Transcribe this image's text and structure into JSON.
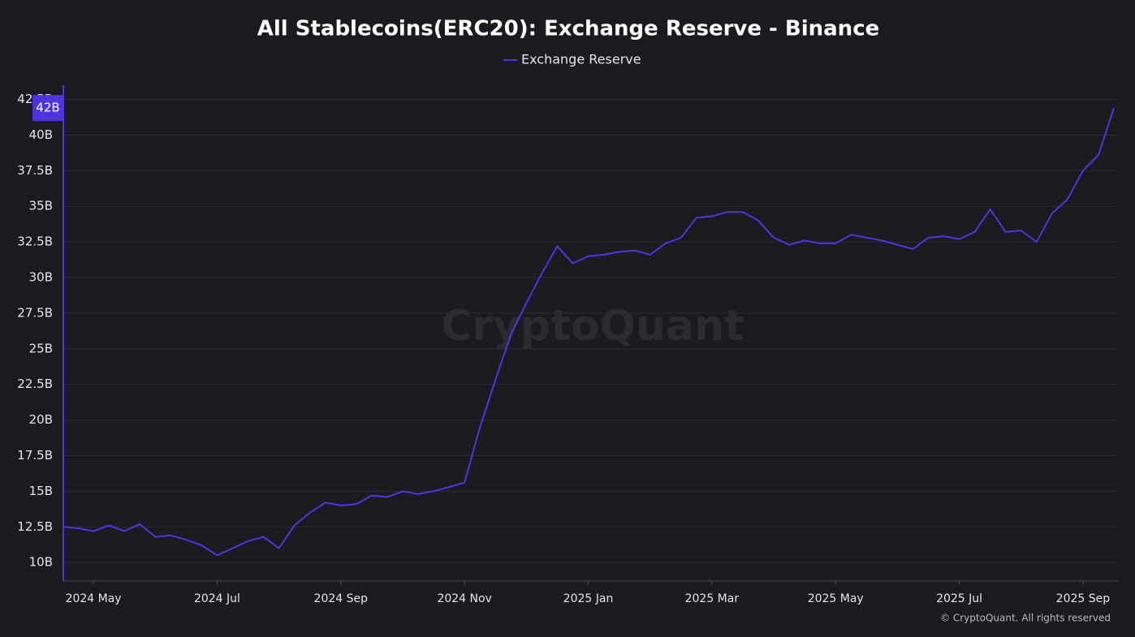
{
  "chart_data": {
    "type": "line",
    "title": "All Stablecoins(ERC20): Exchange Reserve - Binance",
    "watermark": "CryptoQuant",
    "copyright": "© CryptoQuant. All rights reserved",
    "categories": [
      null,
      null,
      "2024 May",
      null,
      null,
      null,
      null,
      null,
      null,
      null,
      "2024 Jul",
      null,
      null,
      null,
      null,
      null,
      null,
      null,
      "2024 Sep",
      null,
      null,
      null,
      null,
      null,
      null,
      null,
      "2024 Nov",
      null,
      null,
      null,
      null,
      null,
      null,
      null,
      "2025 Jan",
      null,
      null,
      null,
      null,
      null,
      null,
      null,
      "2025 Mar",
      null,
      null,
      null,
      null,
      null,
      null,
      null,
      "2025 May",
      null,
      null,
      null,
      null,
      null,
      null,
      null,
      "2025 Jul",
      null,
      null,
      null,
      null,
      null,
      null,
      null,
      "2025 Sep",
      null,
      null
    ],
    "series": [
      {
        "name": "Exchange Reserve",
        "color": "#4f33e0",
        "values": [
          12.5,
          12.4,
          12.2,
          12.6,
          12.2,
          12.7,
          11.8,
          11.9,
          11.6,
          11.2,
          10.5,
          11.0,
          11.5,
          11.8,
          11.0,
          12.6,
          13.5,
          14.2,
          14.0,
          14.1,
          14.7,
          14.6,
          15.0,
          14.8,
          15.0,
          15.3,
          15.6,
          19.5,
          22.8,
          26.0,
          28.2,
          30.3,
          32.2,
          31.0,
          31.5,
          31.6,
          31.8,
          31.9,
          31.6,
          32.4,
          32.8,
          34.2,
          34.3,
          34.6,
          34.6,
          34.0,
          32.8,
          32.3,
          32.6,
          32.4,
          32.4,
          33.0,
          32.8,
          32.6,
          32.3,
          32.0,
          32.8,
          32.9,
          32.7,
          33.2,
          34.8,
          33.2,
          33.3,
          32.5,
          34.5,
          35.5,
          37.5,
          38.6,
          41.9
        ],
        "value_labels": [
          null,
          null,
          null,
          null,
          null,
          null,
          null,
          null,
          null,
          null,
          null,
          null,
          null,
          null,
          null,
          null,
          null,
          null,
          null,
          null,
          null,
          null,
          null,
          null,
          null,
          null,
          null,
          null,
          null,
          null,
          null,
          null,
          null,
          null,
          null,
          null,
          null,
          null,
          null,
          null,
          null,
          null,
          null,
          null,
          null,
          null,
          null,
          null,
          null,
          null,
          null,
          null,
          null,
          null,
          null,
          null,
          null,
          null,
          null,
          null,
          null,
          null,
          null,
          null,
          null,
          null,
          null,
          null,
          "42B"
        ]
      }
    ],
    "ylim": [
      8.7,
      43.5
    ],
    "yticks": [
      {
        "value": 10,
        "label": "10B"
      },
      {
        "value": 12.5,
        "label": "12.5B"
      },
      {
        "value": 15,
        "label": "15B"
      },
      {
        "value": 17.5,
        "label": "17.5B"
      },
      {
        "value": 20,
        "label": "20B"
      },
      {
        "value": 22.5,
        "label": "22.5B"
      },
      {
        "value": 25,
        "label": "25B"
      },
      {
        "value": 27.5,
        "label": "27.5B"
      },
      {
        "value": 30,
        "label": "30B"
      },
      {
        "value": 32.5,
        "label": "32.5B"
      },
      {
        "value": 35,
        "label": "35B"
      },
      {
        "value": 37.5,
        "label": "37.5B"
      },
      {
        "value": 40,
        "label": "40B"
      },
      {
        "value": 42.5,
        "label": "42.5B"
      }
    ],
    "grid": true,
    "legend": "top"
  }
}
